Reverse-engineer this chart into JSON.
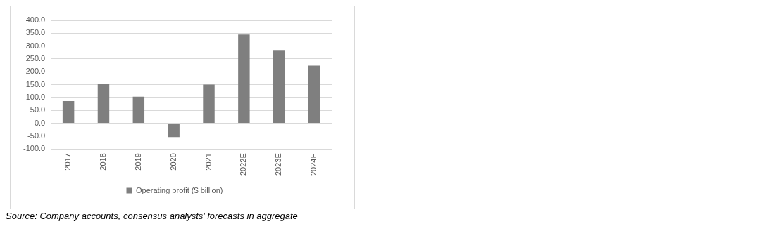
{
  "chart_data": {
    "type": "bar",
    "categories": [
      "2017",
      "2018",
      "2019",
      "2020",
      "2021",
      "2022E",
      "2023E",
      "2024E"
    ],
    "series": [
      {
        "name": "Operating profit ($ billion)",
        "color": "#7f7f7f",
        "values": [
          86,
          153,
          103,
          -54,
          150,
          345,
          285,
          224
        ]
      }
    ],
    "ylim": [
      -100,
      400
    ],
    "yticks": [
      {
        "value": -100,
        "label": "-100.0"
      },
      {
        "value": -50,
        "label": "-50.0"
      },
      {
        "value": 0,
        "label": "0.0"
      },
      {
        "value": 50,
        "label": "50.0"
      },
      {
        "value": 100,
        "label": "100.0"
      },
      {
        "value": 150,
        "label": "150.0"
      },
      {
        "value": 200,
        "label": "200.0"
      },
      {
        "value": 250,
        "label": "250.0"
      },
      {
        "value": 300,
        "label": "300.0"
      },
      {
        "value": 350,
        "label": "350.0"
      },
      {
        "value": 400,
        "label": "400.0"
      }
    ],
    "grid": "y",
    "legend": "bottom",
    "annotations": [
      "Source: Company accounts, consensus analysts’ forecasts in aggregate"
    ]
  }
}
